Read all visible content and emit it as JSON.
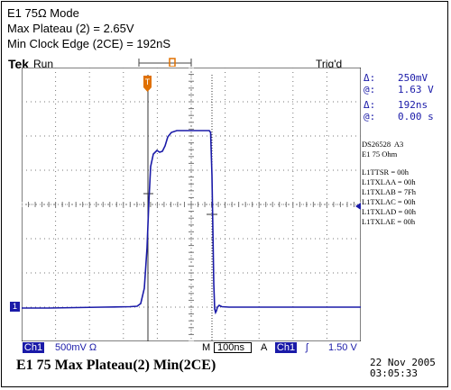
{
  "header": {
    "line1": "E1 75Ω Mode",
    "line2": "Max Plateau (2) = 2.65V",
    "line3": "Min Clock Edge (2CE) = 192nS"
  },
  "scope": {
    "brand": "Tek",
    "state": "Run",
    "trigger_status": "Trig'd",
    "readouts": {
      "delta_v_symbol": "Δ:",
      "delta_v": "250mV",
      "at_v_symbol": "@:",
      "at_v": "1.63 V",
      "delta_t_symbol": "Δ:",
      "delta_t": "192ns",
      "at_t_symbol": "@:",
      "at_t": "0.00 s"
    },
    "chip_info": {
      "part": "DS26528  A3",
      "mode": "E1 75 Ohm",
      "registers": [
        "L1TTSR = 00h",
        "L1TXLAA = 00h",
        "L1TXLAB = 7Fh",
        "L1TXLAC = 00h",
        "L1TXLAD = 00h",
        "L1TXLAE = 00h"
      ]
    },
    "status_bar": {
      "channel": "Ch1",
      "volts_per_div": "500mV Ω",
      "m_label": "M",
      "time_per_div": "100ns",
      "a_label": "A",
      "trigger_channel": "Ch1",
      "trigger_slope": "ʃ",
      "trigger_level": "1.50 V"
    },
    "caption": "E1 75 Max Plateau(2)  Min(2CE)",
    "date": "22 Nov 2005",
    "time": "03:05:33",
    "trace_color": "#1a1aa8",
    "grid_color": "#777777"
  }
}
